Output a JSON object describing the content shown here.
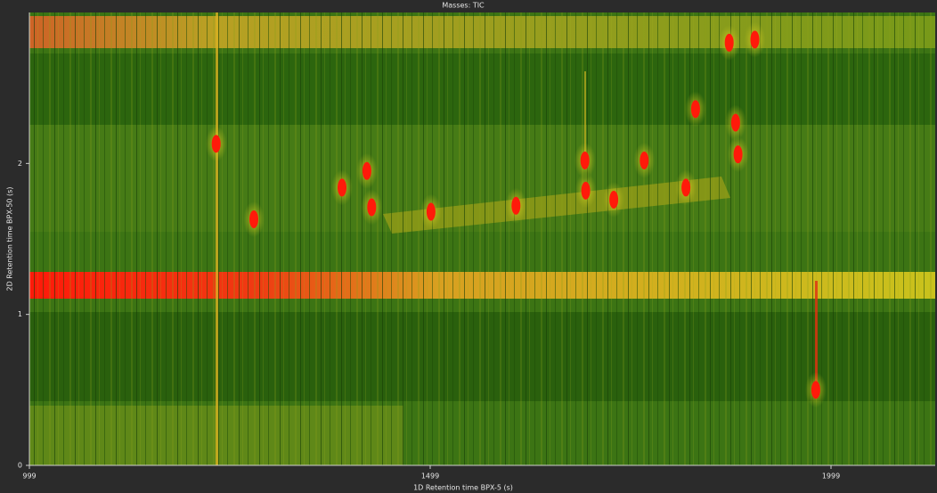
{
  "chart_data": {
    "type": "scatter",
    "title": "Masses: TIC",
    "x_label": "1D Retention time BPX-5 (s)",
    "y_label": "2D Retention time BPX-50 (s)",
    "xlim": [
      999,
      2129
    ],
    "ylim": [
      0,
      3
    ],
    "xticks": [
      999,
      1499,
      1999
    ],
    "yticks": [
      0,
      1,
      2
    ],
    "color": "#ff1a0a",
    "x": [
      1232,
      1279,
      1389,
      1420,
      1426,
      1500,
      1606,
      1692,
      1693,
      1728,
      1766,
      1818,
      1830,
      1880,
      1883,
      1980,
      1904,
      1872
    ],
    "y": [
      2.13,
      1.63,
      1.84,
      1.95,
      1.71,
      1.68,
      1.72,
      2.02,
      1.82,
      1.76,
      2.02,
      1.84,
      2.36,
      2.27,
      2.06,
      0.5,
      2.82,
      2.8
    ]
  }
}
